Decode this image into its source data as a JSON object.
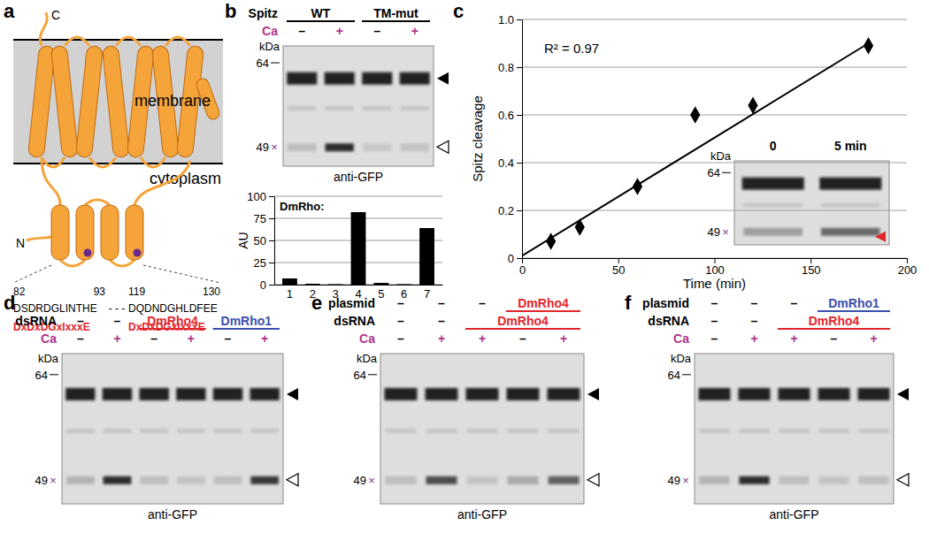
{
  "chart_data": [
    {
      "type": "bar",
      "title": "DmRho:",
      "ylabel": "AU",
      "categories": [
        "1",
        "2",
        "3",
        "4",
        "5",
        "6",
        "7"
      ],
      "values": [
        7,
        1,
        0.5,
        82,
        2,
        0.5,
        64
      ],
      "color": "#000000",
      "ylim": [
        0,
        100
      ],
      "yticks": [
        0,
        25,
        50,
        75,
        100
      ],
      "grid": true
    },
    {
      "type": "scatter",
      "annotation": "R² = 0.97",
      "xlabel": "Time (min)",
      "ylabel": "Spitz cleavage",
      "xlim": [
        0,
        200
      ],
      "xticks": [
        0,
        50,
        100,
        150,
        200
      ],
      "ylim": [
        0,
        1
      ],
      "yticks": [
        0,
        0.2,
        0.4,
        0.6,
        0.8,
        {
          "value": 1,
          "label": "1.0"
        }
      ],
      "grid": true,
      "series": [
        {
          "type": "scatter",
          "marker": "diamond",
          "color": "#000000",
          "x": [
            15,
            30,
            60,
            90,
            120,
            180
          ],
          "values": [
            0.07,
            0.13,
            0.3,
            0.6,
            0.64,
            0.89
          ]
        },
        {
          "type": "line",
          "line_style": "solid",
          "color": "#000000",
          "x": [
            0,
            180
          ],
          "values": [
            0.01,
            0.9
          ]
        }
      ]
    }
  ],
  "figure": {
    "colors": {
      "Ca": "#b0348c",
      "+": "#b0348c",
      "DmRho4": "#e3262b",
      "DmRho1": "#3a4fae",
      "nonspecific": "#7b3a8c",
      "arrow": "#e3262b"
    },
    "panels": {
      "a": {
        "label": "a",
        "c_term": "C",
        "n_term": "N",
        "membrane": "membrane",
        "cytoplasm": "cytoplasm",
        "motifs": [
          {
            "start": 82,
            "end": 93,
            "sequence": "DSDRDGLINTHE",
            "consensus": "DxDxDGxIxxxE"
          },
          {
            "start": 119,
            "end": 130,
            "sequence": "DQDNDGHLDFEE",
            "consensus": "DxDxDGxIxxxE"
          }
        ],
        "separator": "- - -"
      },
      "b": {
        "label": "b",
        "blot": {
          "rows": [
            {
              "label": "Spitz",
              "cells": [
                "WT",
                null,
                "TM-mut",
                null
              ]
            },
            {
              "label": "Ca",
              "cells": [
                "–",
                "+",
                "–",
                "+"
              ]
            }
          ],
          "kda": "kDa",
          "markers": [
            64,
            49
          ],
          "nonspecific": "×",
          "antibody": "anti-GFP",
          "cleaved": [
            0.15,
            0.85,
            0.1,
            0.12
          ]
        }
      },
      "c": {
        "label": "c",
        "inset": {
          "rows": [
            {
              "cells": [
                "0",
                "5 min"
              ]
            }
          ],
          "kda": "kDa",
          "markers": [
            64,
            49
          ],
          "nonspecific": "×",
          "cleaved": [
            0.3,
            0.55
          ]
        }
      },
      "d": {
        "label": "d",
        "blot": {
          "rows": [
            {
              "label": "dsRNA",
              "cells": [
                "–",
                "–",
                "DmRho4",
                null,
                "DmRho1",
                null
              ]
            },
            {
              "label": "Ca",
              "cells": [
                "–",
                "+",
                "–",
                "+",
                "–",
                "+"
              ]
            }
          ],
          "kda": "kDa",
          "markers": [
            64,
            49
          ],
          "nonspecific": "×",
          "antibody": "anti-GFP",
          "cleaved": [
            0.2,
            0.85,
            0.15,
            0.12,
            0.15,
            0.8
          ]
        }
      },
      "e": {
        "label": "e",
        "blot": {
          "rows": [
            {
              "label": "plasmid",
              "cells": [
                "–",
                "–",
                "–",
                "DmRho4",
                null
              ]
            },
            {
              "label": "dsRNA",
              "cells": [
                "–",
                "–",
                "DmRho4",
                null,
                null
              ]
            },
            {
              "label": "Ca",
              "cells": [
                "–",
                "+",
                "+",
                "–",
                "+"
              ]
            }
          ],
          "kda": "kDa",
          "markers": [
            64,
            49
          ],
          "nonspecific": "×",
          "antibody": "anti-GFP",
          "cleaved": [
            0.15,
            0.7,
            0.12,
            0.25,
            0.6
          ]
        }
      },
      "f": {
        "label": "f",
        "blot": {
          "rows": [
            {
              "label": "plasmid",
              "cells": [
                "–",
                "–",
                "–",
                "DmRho1",
                null
              ]
            },
            {
              "label": "dsRNA",
              "cells": [
                "–",
                "–",
                "DmRho4",
                null,
                null
              ]
            },
            {
              "label": "Ca",
              "cells": [
                "–",
                "+",
                "+",
                "–",
                "+"
              ]
            }
          ],
          "kda": "kDa",
          "markers": [
            64,
            49
          ],
          "nonspecific": "×",
          "antibody": "anti-GFP",
          "cleaved": [
            0.2,
            0.85,
            0.15,
            0.12,
            0.15
          ]
        }
      }
    }
  }
}
